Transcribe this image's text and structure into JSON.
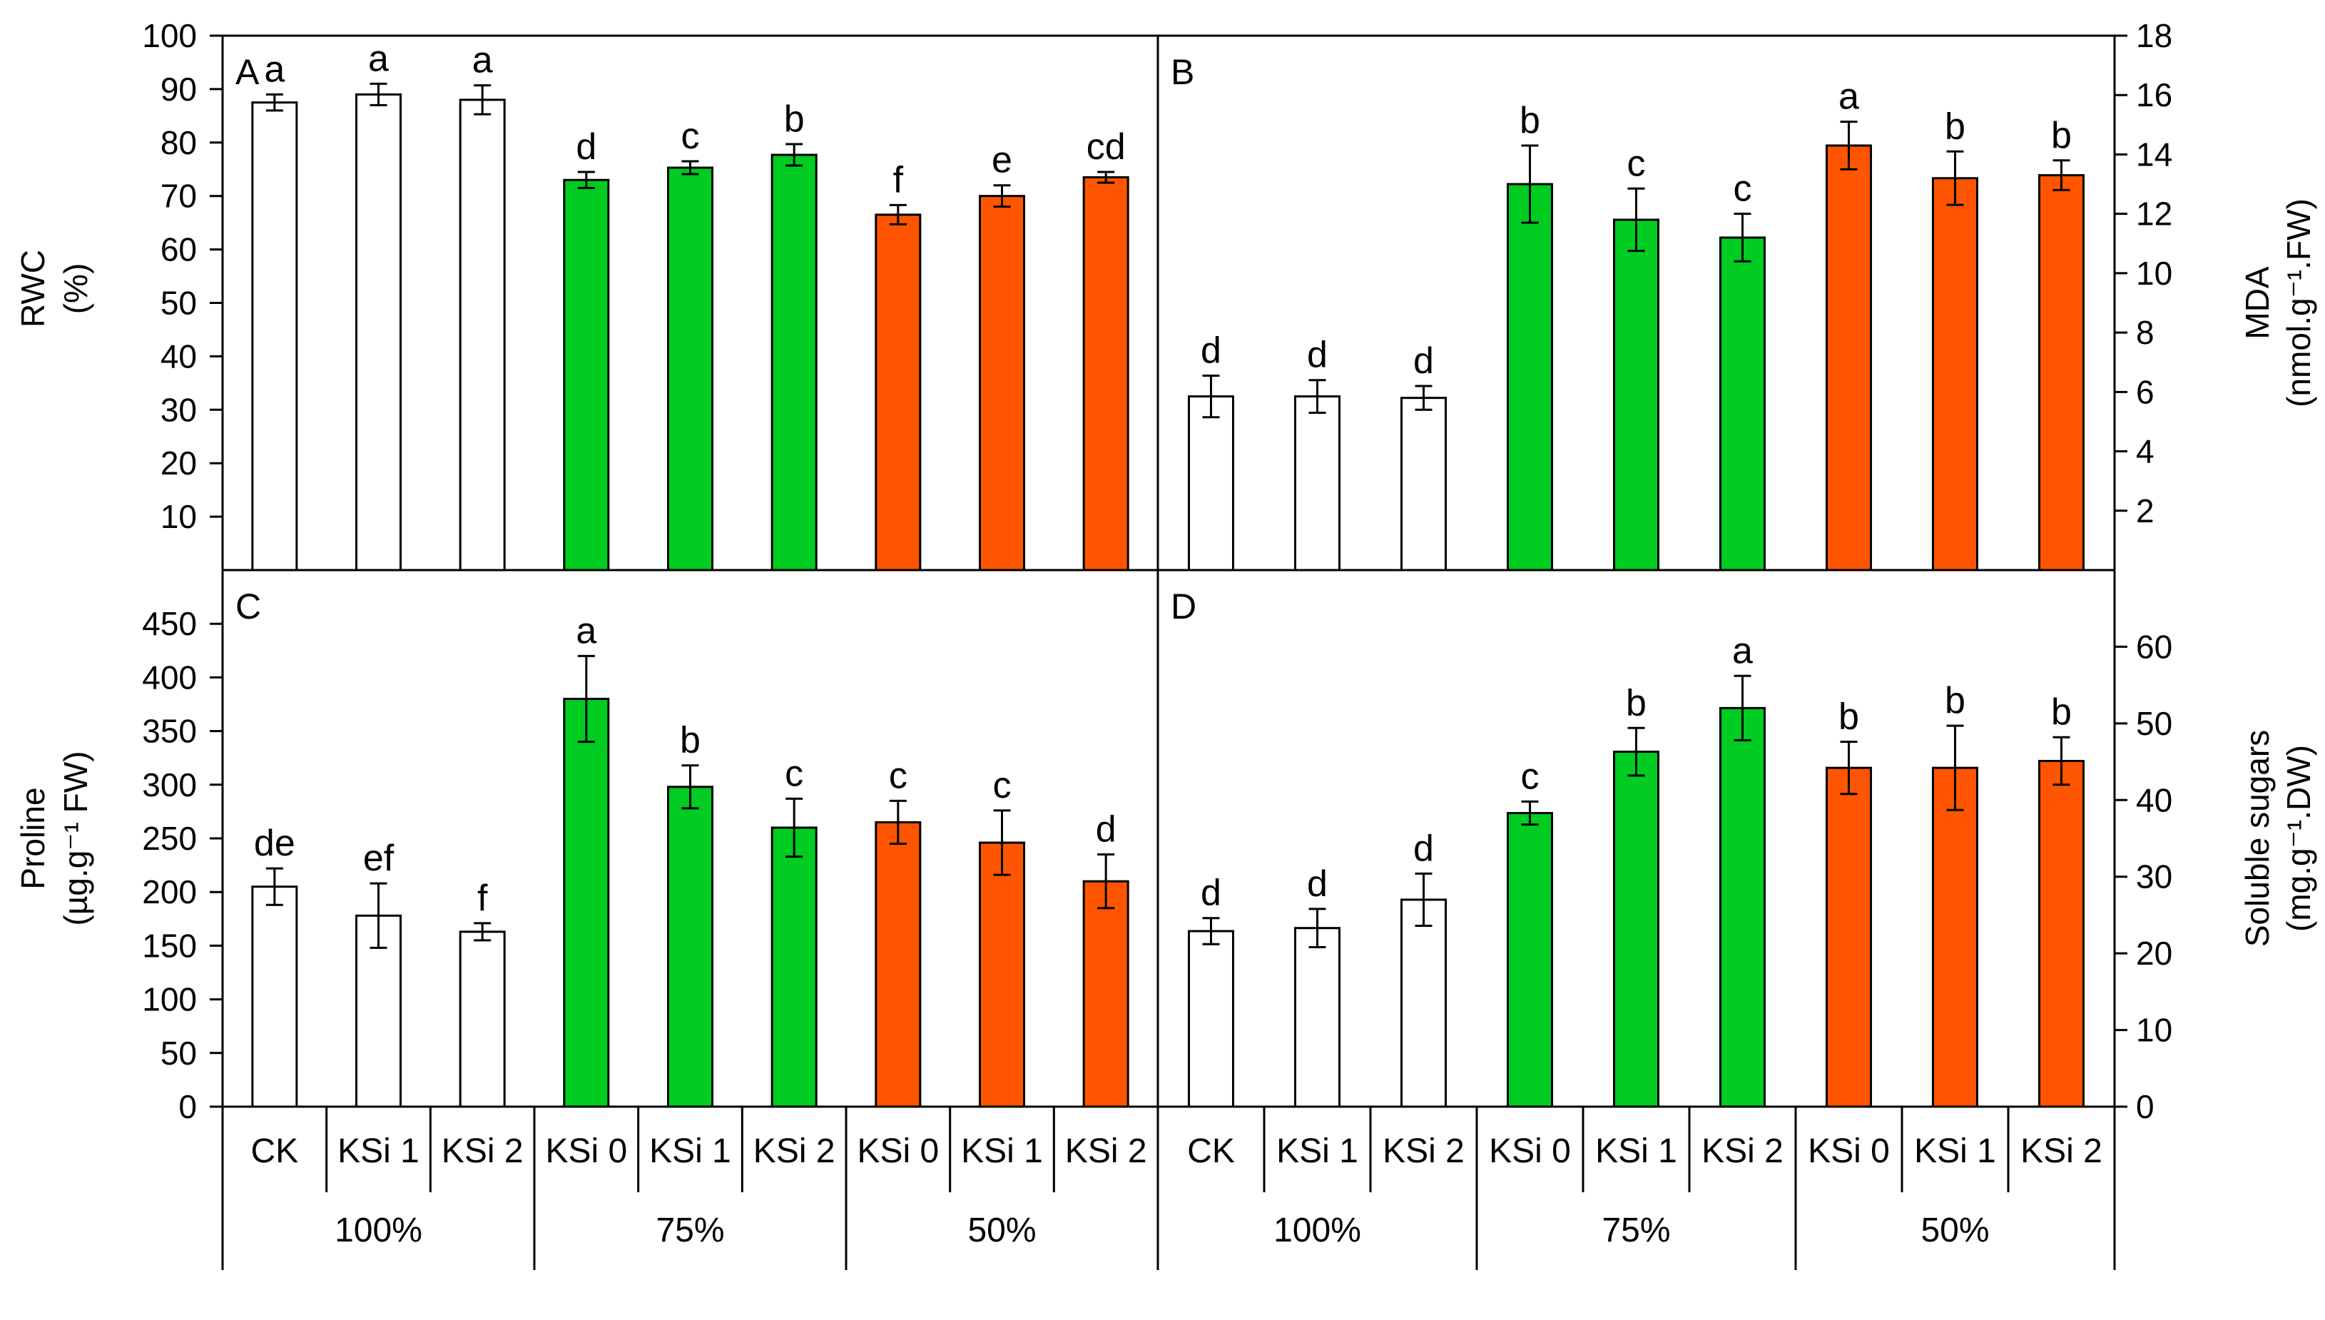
{
  "figure": {
    "colors": {
      "c100": "#ffffff",
      "c75": "#00cc22",
      "c50": "#ff5500",
      "line": "#000000"
    }
  },
  "chart_data": [
    {
      "type": "bar",
      "panel": "A",
      "ylabel": "RWC",
      "ylabel_unit": "(%)",
      "ylim": [
        0,
        100
      ],
      "yticks": [
        10,
        20,
        30,
        40,
        50,
        60,
        70,
        80,
        90,
        100
      ],
      "ytick_labels": [
        "10",
        "20",
        "30",
        "40",
        "50",
        "60",
        "70",
        "80",
        "90",
        "100"
      ],
      "categories": [
        "CK",
        "KSi 1",
        "KSi 2",
        "KSi 0",
        "KSi 1",
        "KSi 2",
        "KSi 0",
        "KSi 1",
        "KSi 2"
      ],
      "groups": [
        "100%",
        "100%",
        "100%",
        "75%",
        "75%",
        "75%",
        "50%",
        "50%",
        "50%"
      ],
      "values": [
        87.5,
        89,
        88,
        73,
        75.3,
        77.7,
        66.5,
        70,
        73.5
      ],
      "errors": [
        1.5,
        2,
        2.7,
        1.5,
        1.2,
        2,
        1.8,
        2,
        1
      ],
      "letters": [
        "a",
        "a",
        "a",
        "d",
        "c",
        "b",
        "f",
        "e",
        "cd"
      ]
    },
    {
      "type": "bar",
      "panel": "B",
      "ylabel": "MDA",
      "ylabel_unit": "(nmol.g⁻¹.FW)",
      "ylim": [
        0,
        18
      ],
      "yticks": [
        2,
        4,
        6,
        8,
        10,
        12,
        14,
        16,
        18
      ],
      "ytick_labels": [
        "2",
        "4",
        "6",
        "8",
        "10",
        "12",
        "14",
        "16",
        "18"
      ],
      "categories": [
        "CK",
        "KSi 1",
        "KSi 2",
        "KSi 0",
        "KSi 1",
        "KSi 2",
        "KSi 0",
        "KSi 1",
        "KSi 2"
      ],
      "groups": [
        "100%",
        "100%",
        "100%",
        "75%",
        "75%",
        "75%",
        "50%",
        "50%",
        "50%"
      ],
      "values": [
        5.85,
        5.85,
        5.8,
        13,
        11.8,
        11.2,
        14.3,
        13.2,
        13.3
      ],
      "errors": [
        0.7,
        0.55,
        0.4,
        1.3,
        1.05,
        0.8,
        0.8,
        0.9,
        0.5
      ],
      "letters": [
        "d",
        "d",
        "d",
        "b",
        "c",
        "c",
        "a",
        "b",
        "b"
      ]
    },
    {
      "type": "bar",
      "panel": "C",
      "ylabel": "Proline",
      "ylabel_unit": "(µg.g⁻¹ FW)",
      "ylim": [
        0,
        500
      ],
      "yticks": [
        0,
        50,
        100,
        150,
        200,
        250,
        300,
        350,
        400,
        450
      ],
      "ytick_labels": [
        "0",
        "50",
        "100",
        "150",
        "200",
        "250",
        "300",
        "350",
        "400",
        "450"
      ],
      "categories": [
        "CK",
        "KSi 1",
        "KSi 2",
        "KSi 0",
        "KSi 1",
        "KSi 2",
        "KSi 0",
        "KSi 1",
        "KSi 2"
      ],
      "groups": [
        "100%",
        "100%",
        "100%",
        "75%",
        "75%",
        "75%",
        "50%",
        "50%",
        "50%"
      ],
      "values": [
        205,
        178,
        163,
        380,
        298,
        260,
        265,
        246,
        210
      ],
      "errors": [
        17,
        30,
        8,
        40,
        20,
        27,
        20,
        30,
        25
      ],
      "letters": [
        "de",
        "ef",
        "f",
        "a",
        "b",
        "c",
        "c",
        "c",
        "d"
      ]
    },
    {
      "type": "bar",
      "panel": "D",
      "ylabel": "Soluble sugars",
      "ylabel_unit": "(mg.g⁻¹.DW)",
      "ylim": [
        0,
        70
      ],
      "yticks": [
        0,
        10,
        20,
        30,
        40,
        50,
        60
      ],
      "ytick_labels": [
        "0",
        "10",
        "20",
        "30",
        "40",
        "50",
        "60"
      ],
      "categories": [
        "CK",
        "KSi 1",
        "KSi 2",
        "KSi 0",
        "KSi 1",
        "KSi 2",
        "KSi 0",
        "KSi 1",
        "KSi 2"
      ],
      "groups": [
        "100%",
        "100%",
        "100%",
        "75%",
        "75%",
        "75%",
        "50%",
        "50%",
        "50%"
      ],
      "values": [
        22.9,
        23.3,
        27,
        38.3,
        46.3,
        52,
        44.2,
        44.2,
        45.1
      ],
      "errors": [
        1.7,
        2.5,
        3.4,
        1.5,
        3.1,
        4.2,
        3.4,
        5.5,
        3.1
      ],
      "letters": [
        "d",
        "d",
        "d",
        "c",
        "b",
        "a",
        "b",
        "b",
        "b"
      ]
    }
  ],
  "x_axis": {
    "categories": [
      "CK",
      "KSi 1",
      "KSi 2",
      "KSi 0",
      "KSi 1",
      "KSi 2",
      "KSi 0",
      "KSi 1",
      "KSi 2"
    ],
    "groups": [
      "100%",
      "75%",
      "50%"
    ]
  }
}
